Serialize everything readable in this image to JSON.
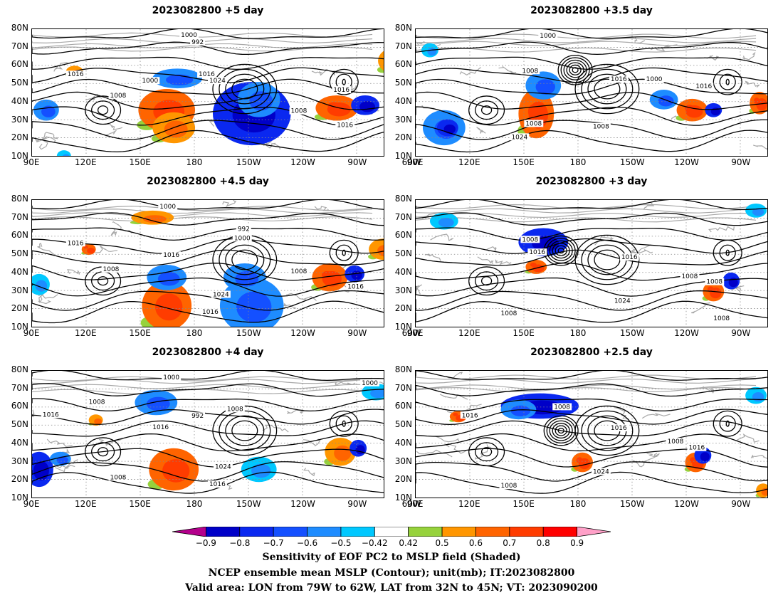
{
  "panels": [
    {
      "title": "2023082800  +5  day"
    },
    {
      "title": "2023082800  +3.5  day"
    },
    {
      "title": "2023082800  +4.5  day"
    },
    {
      "title": "2023082800  +3  day"
    },
    {
      "title": "2023082800  +4  day"
    },
    {
      "title": "2023082800  +2.5  day"
    }
  ],
  "axes": {
    "lat_labels": [
      "80N",
      "70N",
      "60N",
      "50N",
      "40N",
      "30N",
      "20N",
      "10N"
    ],
    "lon_labels": [
      "90E",
      "120E",
      "150E",
      "180",
      "150W",
      "120W",
      "90W",
      "60W"
    ]
  },
  "contour_labels": {
    "p0": [
      "1000",
      "992",
      "1016",
      "1000",
      "1016",
      "1024",
      "1008",
      "1016",
      "1008",
      "1016"
    ],
    "p1": [
      "1000",
      "1008",
      "1016",
      "1000",
      "1016",
      "1008",
      "1024",
      "1008"
    ],
    "p2": [
      "1000",
      "992",
      "1016",
      "1000",
      "1016",
      "1008",
      "1008",
      "1024",
      "1016",
      "1016"
    ],
    "p3": [
      "1008",
      "1016",
      "1016",
      "1008",
      "1008",
      "1024",
      "1008",
      "1008"
    ],
    "p4": [
      "1000",
      "1008",
      "1000",
      "1008",
      "992",
      "1016",
      "1016",
      "1024",
      "1016",
      "1008"
    ],
    "p5": [
      "1016",
      "1008",
      "1016",
      "1008",
      "1016",
      "1024",
      "1008"
    ]
  },
  "colorbar": {
    "labels": [
      "−0.9",
      "−0.8",
      "−0.7",
      "−0.6",
      "−0.5",
      "−0.42",
      "0.42",
      "0.5",
      "0.6",
      "0.7",
      "0.8",
      "0.9"
    ],
    "colors": [
      "#0000c8",
      "#0a28f0",
      "#1450ff",
      "#1e8cff",
      "#00c8ff",
      "#ffffff",
      "#96d23c",
      "#ff9600",
      "#ff6400",
      "#ff3c00",
      "#ff0000"
    ],
    "end_low": "#b4008c",
    "end_high": "#ffa0c8"
  },
  "captions": {
    "line1": "Sensitivity of EOF PC2 to MSLP field (Shaded)",
    "line2": "NCEP ensemble mean MSLP (Contour); unit(mb); IT:2023082800",
    "line3": "Valid area: LON from 79W to 62W, LAT from 32N to 45N; VT: 2023090200"
  }
}
